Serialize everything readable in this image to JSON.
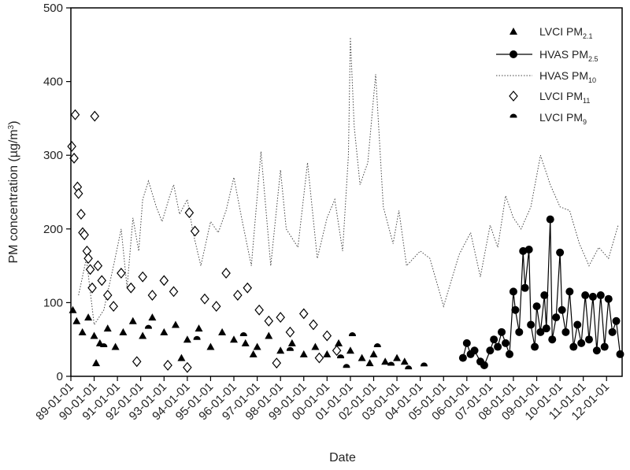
{
  "chart_data": {
    "type": "scatter",
    "title": "",
    "xlabel": "Date",
    "ylabel": "PM concentration (µg/m³)",
    "ylabel_main": "PM concentration (µg/m",
    "ylabel_sup": "3",
    "ylabel_end": ")",
    "ylim": [
      0,
      500
    ],
    "yticks": [
      "0",
      "100",
      "200",
      "300",
      "400",
      "500"
    ],
    "xlim": [
      "1989-01-01",
      "2012-09-01"
    ],
    "xticks": [
      "89-01-01",
      "90-01-01",
      "91-01-01",
      "92-01-01",
      "93-01-01",
      "94-01-01",
      "95-01-01",
      "96-01-01",
      "97-01-01",
      "98-01-01",
      "99-01-01",
      "00-01-01",
      "01-01-01",
      "02-01-01",
      "03-01-01",
      "04-01-01",
      "05-01-01",
      "06-01-01",
      "07-01-01",
      "08-01-01",
      "09-01-01",
      "10-01-01",
      "11-01-01",
      "12-01-01"
    ],
    "grid": false,
    "legend_position": "top-right",
    "legend": [
      {
        "base": "LVCI PM",
        "sub": "2.1",
        "marker": "triangle"
      },
      {
        "base": "HVAS PM",
        "sub": "2.5",
        "marker": "line-circle"
      },
      {
        "base": "HVAS PM",
        "sub": "10",
        "marker": "dotted-line"
      },
      {
        "base": "LVCI PM",
        "sub": "11",
        "marker": "diamond"
      },
      {
        "base": "LVCI PM",
        "sub": "9",
        "marker": "half-circle"
      }
    ],
    "series": [
      {
        "name": "HVAS PM10",
        "marker": "dotted-line",
        "points": [
          [
            "1989-05-01",
            110
          ],
          [
            "1989-09-01",
            160
          ],
          [
            "1990-01-01",
            70
          ],
          [
            "1990-06-01",
            90
          ],
          [
            "1990-11-01",
            150
          ],
          [
            "1991-03-01",
            200
          ],
          [
            "1991-06-01",
            120
          ],
          [
            "1991-09-01",
            215
          ],
          [
            "1991-12-01",
            170
          ],
          [
            "1992-02-01",
            240
          ],
          [
            "1992-05-01",
            265
          ],
          [
            "1992-09-01",
            230
          ],
          [
            "1992-12-01",
            210
          ],
          [
            "1993-04-01",
            245
          ],
          [
            "1993-06-01",
            260
          ],
          [
            "1993-09-01",
            220
          ],
          [
            "1994-01-01",
            240
          ],
          [
            "1994-04-01",
            195
          ],
          [
            "1994-08-01",
            150
          ],
          [
            "1995-01-01",
            210
          ],
          [
            "1995-05-01",
            195
          ],
          [
            "1995-09-01",
            225
          ],
          [
            "1996-01-01",
            270
          ],
          [
            "1996-05-01",
            215
          ],
          [
            "1996-10-01",
            150
          ],
          [
            "1997-03-01",
            305
          ],
          [
            "1997-08-01",
            150
          ],
          [
            "1998-01-01",
            280
          ],
          [
            "1998-04-01",
            200
          ],
          [
            "1998-10-01",
            175
          ],
          [
            "1999-03-01",
            290
          ],
          [
            "1999-08-01",
            160
          ],
          [
            "2000-01-01",
            215
          ],
          [
            "2000-05-01",
            240
          ],
          [
            "2000-09-01",
            170
          ],
          [
            "2000-12-01",
            300
          ],
          [
            "2001-01-01",
            460
          ],
          [
            "2001-03-01",
            340
          ],
          [
            "2001-06-01",
            260
          ],
          [
            "2001-10-01",
            290
          ],
          [
            "2002-02-01",
            410
          ],
          [
            "2002-06-01",
            230
          ],
          [
            "2002-11-01",
            180
          ],
          [
            "2003-02-01",
            225
          ],
          [
            "2003-06-01",
            150
          ],
          [
            "2004-01-01",
            170
          ],
          [
            "2004-06-01",
            160
          ],
          [
            "2005-01-01",
            95
          ],
          [
            "2005-09-01",
            165
          ],
          [
            "2006-03-01",
            195
          ],
          [
            "2006-08-01",
            135
          ],
          [
            "2007-01-01",
            205
          ],
          [
            "2007-05-01",
            175
          ],
          [
            "2007-09-01",
            245
          ],
          [
            "2008-01-01",
            215
          ],
          [
            "2008-05-01",
            200
          ],
          [
            "2008-10-01",
            230
          ],
          [
            "2009-03-01",
            300
          ],
          [
            "2009-08-01",
            260
          ],
          [
            "2010-01-01",
            230
          ],
          [
            "2010-06-01",
            225
          ],
          [
            "2010-11-01",
            180
          ],
          [
            "2011-04-01",
            150
          ],
          [
            "2011-09-01",
            175
          ],
          [
            "2012-02-01",
            160
          ],
          [
            "2012-07-01",
            205
          ]
        ]
      },
      {
        "name": "LVCI PM11",
        "marker": "diamond",
        "points": [
          [
            "1989-01-15",
            312
          ],
          [
            "1989-02-20",
            296
          ],
          [
            "1989-03-10",
            355
          ],
          [
            "1989-04-15",
            257
          ],
          [
            "1989-05-01",
            248
          ],
          [
            "1989-06-10",
            220
          ],
          [
            "1989-07-05",
            195
          ],
          [
            "1989-08-01",
            192
          ],
          [
            "1989-09-10",
            170
          ],
          [
            "1989-10-01",
            160
          ],
          [
            "1989-11-01",
            145
          ],
          [
            "1989-12-01",
            120
          ],
          [
            "1990-01-10",
            353
          ],
          [
            "1990-03-01",
            150
          ],
          [
            "1990-05-01",
            130
          ],
          [
            "1990-08-01",
            110
          ],
          [
            "1990-11-01",
            95
          ],
          [
            "1991-03-01",
            140
          ],
          [
            "1991-08-01",
            120
          ],
          [
            "1992-02-01",
            135
          ],
          [
            "1992-07-01",
            110
          ],
          [
            "1993-01-01",
            130
          ],
          [
            "1993-06-01",
            115
          ],
          [
            "1994-02-01",
            222
          ],
          [
            "1994-05-01",
            197
          ],
          [
            "1994-10-01",
            105
          ],
          [
            "1995-04-01",
            95
          ],
          [
            "1995-09-01",
            140
          ],
          [
            "1996-03-01",
            110
          ],
          [
            "1996-08-01",
            120
          ],
          [
            "1997-02-01",
            90
          ],
          [
            "1997-07-01",
            75
          ],
          [
            "1998-01-01",
            80
          ],
          [
            "1998-06-01",
            60
          ],
          [
            "1999-01-01",
            85
          ],
          [
            "1999-06-01",
            70
          ],
          [
            "2000-01-01",
            55
          ],
          [
            "2000-06-01",
            35
          ],
          [
            "1991-11-01",
            20
          ],
          [
            "1993-03-01",
            15
          ],
          [
            "1994-01-01",
            12
          ],
          [
            "1997-11-01",
            18
          ],
          [
            "1999-09-01",
            25
          ]
        ]
      },
      {
        "name": "LVCI PM2.1",
        "marker": "triangle",
        "points": [
          [
            "1989-02-01",
            90
          ],
          [
            "1989-04-01",
            75
          ],
          [
            "1989-07-01",
            60
          ],
          [
            "1989-10-01",
            80
          ],
          [
            "1990-01-01",
            55
          ],
          [
            "1990-04-01",
            45
          ],
          [
            "1990-08-01",
            65
          ],
          [
            "1990-12-01",
            40
          ],
          [
            "1991-04-01",
            60
          ],
          [
            "1991-09-01",
            75
          ],
          [
            "1992-02-01",
            55
          ],
          [
            "1992-07-01",
            80
          ],
          [
            "1993-01-01",
            60
          ],
          [
            "1993-07-01",
            70
          ],
          [
            "1994-01-01",
            50
          ],
          [
            "1994-07-01",
            65
          ],
          [
            "1995-01-01",
            40
          ],
          [
            "1995-07-01",
            60
          ],
          [
            "1996-01-01",
            50
          ],
          [
            "1996-07-01",
            45
          ],
          [
            "1997-01-01",
            40
          ],
          [
            "1997-07-01",
            55
          ],
          [
            "1998-01-01",
            35
          ],
          [
            "1998-07-01",
            45
          ],
          [
            "1999-01-01",
            30
          ],
          [
            "1999-07-01",
            40
          ],
          [
            "2000-01-01",
            30
          ],
          [
            "2000-07-01",
            45
          ],
          [
            "2001-01-01",
            35
          ],
          [
            "2001-07-01",
            25
          ],
          [
            "2002-01-01",
            30
          ],
          [
            "2002-07-01",
            20
          ],
          [
            "2003-01-01",
            25
          ],
          [
            "2003-05-01",
            20
          ],
          [
            "1990-02-01",
            18
          ],
          [
            "1993-10-01",
            25
          ],
          [
            "1996-11-01",
            30
          ],
          [
            "2001-11-01",
            18
          ]
        ]
      },
      {
        "name": "LVCI PM9",
        "marker": "half-circle",
        "points": [
          [
            "1990-06-01",
            40
          ],
          [
            "1992-05-01",
            65
          ],
          [
            "1994-06-01",
            50
          ],
          [
            "1996-06-01",
            55
          ],
          [
            "1998-06-01",
            35
          ],
          [
            "2000-08-01",
            25
          ],
          [
            "2001-02-01",
            55
          ],
          [
            "2002-03-01",
            40
          ],
          [
            "2002-10-01",
            15
          ],
          [
            "2003-07-01",
            10
          ],
          [
            "2004-03-01",
            14
          ],
          [
            "2000-11-01",
            12
          ]
        ]
      },
      {
        "name": "HVAS PM2.5",
        "marker": "line-circle",
        "points": [
          [
            "2005-11-01",
            25
          ],
          [
            "2006-01-01",
            45
          ],
          [
            "2006-03-01",
            30
          ],
          [
            "2006-05-01",
            35
          ],
          [
            "2006-08-01",
            20
          ],
          [
            "2006-10-01",
            15
          ],
          [
            "2007-01-01",
            35
          ],
          [
            "2007-03-01",
            50
          ],
          [
            "2007-05-01",
            40
          ],
          [
            "2007-07-01",
            60
          ],
          [
            "2007-09-01",
            45
          ],
          [
            "2007-11-01",
            30
          ],
          [
            "2008-01-01",
            115
          ],
          [
            "2008-02-01",
            90
          ],
          [
            "2008-04-01",
            60
          ],
          [
            "2008-06-01",
            170
          ],
          [
            "2008-07-01",
            120
          ],
          [
            "2008-09-01",
            172
          ],
          [
            "2008-10-01",
            70
          ],
          [
            "2008-12-01",
            40
          ],
          [
            "2009-01-01",
            95
          ],
          [
            "2009-03-01",
            60
          ],
          [
            "2009-05-01",
            110
          ],
          [
            "2009-06-01",
            65
          ],
          [
            "2009-08-01",
            213
          ],
          [
            "2009-09-01",
            50
          ],
          [
            "2009-11-01",
            80
          ],
          [
            "2010-01-01",
            168
          ],
          [
            "2010-02-01",
            90
          ],
          [
            "2010-04-01",
            60
          ],
          [
            "2010-06-01",
            115
          ],
          [
            "2010-08-01",
            40
          ],
          [
            "2010-10-01",
            70
          ],
          [
            "2010-12-01",
            45
          ],
          [
            "2011-02-01",
            110
          ],
          [
            "2011-04-01",
            50
          ],
          [
            "2011-06-01",
            108
          ],
          [
            "2011-08-01",
            35
          ],
          [
            "2011-10-01",
            110
          ],
          [
            "2011-12-01",
            40
          ],
          [
            "2012-02-01",
            105
          ],
          [
            "2012-04-01",
            60
          ],
          [
            "2012-06-01",
            75
          ],
          [
            "2012-08-01",
            30
          ]
        ]
      }
    ]
  }
}
